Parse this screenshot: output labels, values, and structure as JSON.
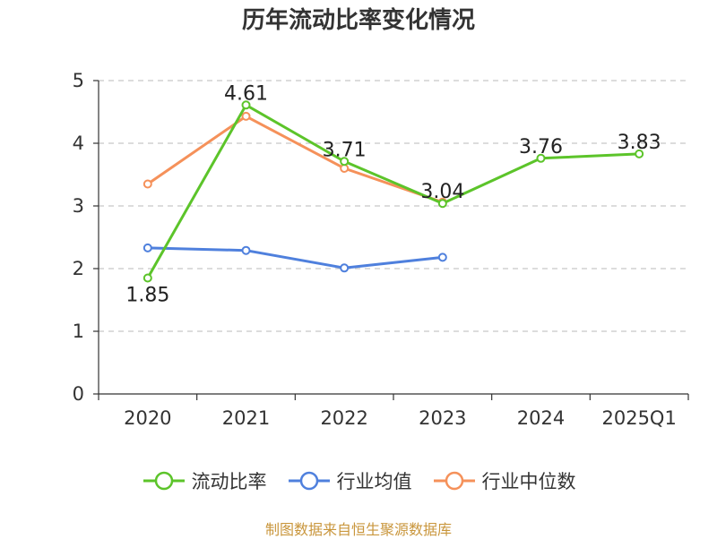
{
  "chart_data": {
    "type": "line",
    "title": "历年流动比率变化情况",
    "categories": [
      "2020",
      "2021",
      "2022",
      "2023",
      "2024",
      "2025Q1"
    ],
    "ylim": [
      0,
      5
    ],
    "yticks": [
      "0",
      "1",
      "2",
      "3",
      "4",
      "5"
    ],
    "grid": true,
    "legend_position": "bottom",
    "series": [
      {
        "name": "流动比率",
        "color": "#5cc42a",
        "values": [
          1.85,
          4.61,
          3.71,
          3.04,
          3.76,
          3.83
        ],
        "labels": [
          "1.85",
          "4.61",
          "3.71",
          "3.04",
          "3.76",
          "3.83"
        ]
      },
      {
        "name": "行业均值",
        "color": "#4f80dd",
        "values": [
          2.33,
          2.29,
          2.01,
          2.18,
          null,
          null
        ]
      },
      {
        "name": "行业中位数",
        "color": "#f5915a",
        "values": [
          3.35,
          4.43,
          3.6,
          3.06,
          null,
          null
        ]
      }
    ]
  },
  "source": "制图数据来自恒生聚源数据库"
}
